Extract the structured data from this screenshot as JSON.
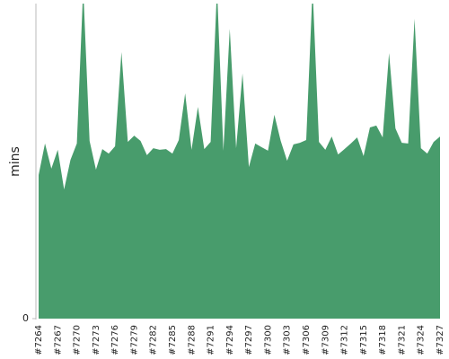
{
  "chart_data": {
    "type": "area",
    "y_label": "mins",
    "categories": [
      "#7264",
      null,
      null,
      "#7267",
      null,
      null,
      "#7270",
      null,
      null,
      "#7273",
      null,
      null,
      "#7276",
      null,
      null,
      "#7279",
      null,
      null,
      "#7282",
      null,
      null,
      "#7285",
      null,
      null,
      "#7288",
      null,
      null,
      "#7291",
      null,
      null,
      "#7294",
      null,
      null,
      "#7297",
      null,
      null,
      "#7300",
      null,
      null,
      "#7303",
      null,
      null,
      "#7306",
      null,
      null,
      "#7309",
      null,
      null,
      "#7312",
      null,
      null,
      "#7315",
      null,
      null,
      "#7318",
      null,
      null,
      "#7321",
      null,
      null,
      "#7324",
      null,
      null,
      "#7327"
    ],
    "values": [
      45.6,
      55.6,
      47.6,
      53.6,
      41,
      50.4,
      55.6,
      105,
      56.4,
      47.3,
      53.8,
      52.4,
      54.7,
      84.6,
      56.1,
      58.1,
      56.4,
      51.9,
      54.1,
      53.6,
      53.8,
      52.4,
      56.7,
      71.5,
      53.6,
      67.2,
      53.8,
      56.1,
      105,
      53.3,
      92,
      54.1,
      77.8,
      48.1,
      55.6,
      54.4,
      53.3,
      64.7,
      56.4,
      50.1,
      55.3,
      55.8,
      56.7,
      105,
      56.1,
      53.6,
      57.8,
      52.1,
      53.8,
      55.6,
      57.5,
      51.6,
      60.7,
      61.3,
      57.5,
      84.3,
      60.4,
      55.8,
      55.6,
      95.2,
      54.1,
      52.4,
      56.1,
      57.8
    ],
    "color": "#489c6c",
    "ylim": [
      0,
      100
    ],
    "yticks": [
      0
    ]
  }
}
